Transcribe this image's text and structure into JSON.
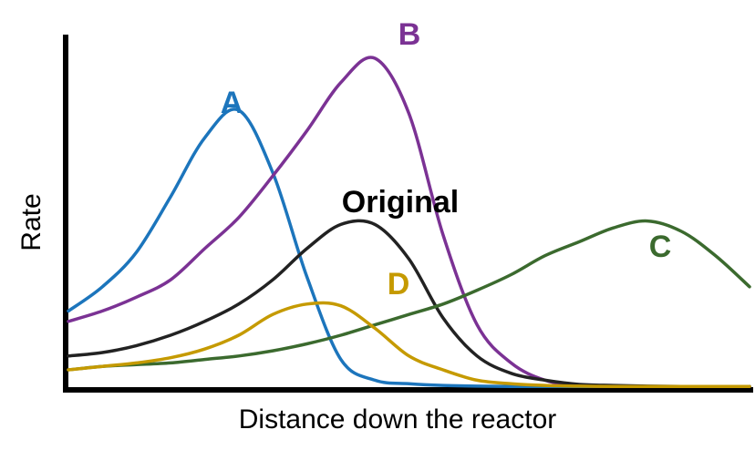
{
  "chart_data": {
    "type": "line",
    "title": "",
    "xlabel": "Distance down the reactor",
    "ylabel": "Rate",
    "xlim": [
      0,
      100
    ],
    "ylim": [
      0,
      100
    ],
    "grid": false,
    "x": [
      0,
      5,
      10,
      15,
      20,
      25,
      30,
      35,
      40,
      45,
      50,
      55,
      60,
      65,
      70,
      75,
      80,
      85,
      90,
      95,
      100
    ],
    "series": [
      {
        "name": "A",
        "color": "#1c75bc",
        "values": [
          22,
          29,
          39,
          55,
          72,
          80,
          62,
          32,
          8,
          2,
          1,
          0.5,
          0.3,
          0.2,
          0.2,
          0.2,
          0.2,
          0.2,
          0.2,
          0.2,
          0.2
        ]
      },
      {
        "name": "B",
        "color": "#7b3294",
        "values": [
          19,
          22,
          26,
          31,
          40,
          49,
          61,
          74,
          88,
          95,
          79,
          44,
          18,
          7,
          2,
          0.5,
          0.3,
          0.2,
          0.2,
          0.2,
          0.2
        ]
      },
      {
        "name": "Original",
        "color": "#222222",
        "values": [
          9,
          10,
          12,
          15,
          19,
          24,
          31,
          40,
          47,
          47,
          37,
          20,
          9,
          4,
          2,
          0.8,
          0.5,
          0.3,
          0.2,
          0.2,
          0.2
        ]
      },
      {
        "name": "C",
        "color": "#3b6a2e",
        "values": [
          5,
          6,
          6.5,
          7,
          8,
          9,
          10.5,
          12.5,
          15,
          18,
          21,
          24,
          28,
          32.5,
          38,
          42,
          46,
          48,
          45,
          38,
          29
        ]
      },
      {
        "name": "D",
        "color": "#c59a00",
        "values": [
          5,
          6,
          7,
          8.5,
          11,
          15,
          21,
          24,
          23.5,
          17,
          9,
          5,
          2,
          1,
          0.5,
          0.3,
          0.2,
          0.2,
          0.2,
          0.2,
          0.2
        ]
      }
    ],
    "labels": [
      {
        "text": "A",
        "color": "#1c75bc"
      },
      {
        "text": "B",
        "color": "#7b3294"
      },
      {
        "text": "Original",
        "color": "#000000"
      },
      {
        "text": "C",
        "color": "#3b6a2e"
      },
      {
        "text": "D",
        "color": "#c59a00"
      }
    ]
  }
}
